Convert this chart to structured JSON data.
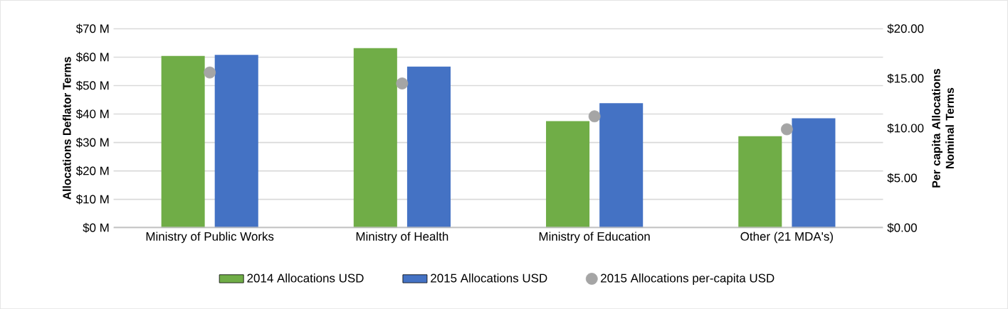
{
  "chart_data": {
    "type": "bar",
    "categories": [
      "Ministry of Public Works",
      "Ministry of Health",
      "Ministry of Education",
      "Other (21 MDA's)"
    ],
    "ylabel": "Allocations Deflator Terms",
    "y2label": "Per capita Allocations Nominal Terms",
    "series": [
      {
        "name": "2014 Allocations USD",
        "color": "#70ad47",
        "values": [
          60.4,
          63.2,
          37.5,
          32.2
        ]
      },
      {
        "name": "2015 Allocations USD",
        "color": "#4472c4",
        "values": [
          60.8,
          56.7,
          43.8,
          38.5
        ]
      },
      {
        "name": "2015 Allocations per-capita USD",
        "type": "scatter",
        "axis": "y2",
        "color": "#a5a5a5",
        "values": [
          15.6,
          14.5,
          11.2,
          9.9
        ]
      }
    ],
    "ylim": [
      0,
      70
    ],
    "yticks": [
      {
        "value": 0,
        "label": "$0 M"
      },
      {
        "value": 10,
        "label": "$10 M"
      },
      {
        "value": 20,
        "label": "$20 M"
      },
      {
        "value": 30,
        "label": "$30 M"
      },
      {
        "value": 40,
        "label": "$40 M"
      },
      {
        "value": 50,
        "label": "$50 M"
      },
      {
        "value": 60,
        "label": "$60 M"
      },
      {
        "value": 70,
        "label": "$70 M"
      }
    ],
    "y2lim": [
      0,
      20
    ],
    "y2ticks": [
      {
        "value": 0,
        "label": "$0.00"
      },
      {
        "value": 5,
        "label": "$5.00"
      },
      {
        "value": 10,
        "label": "$10.00"
      },
      {
        "value": 15,
        "label": "$15.00"
      },
      {
        "value": 20,
        "label": "$20.00"
      }
    ],
    "grid": "y",
    "legend": "bottom"
  }
}
